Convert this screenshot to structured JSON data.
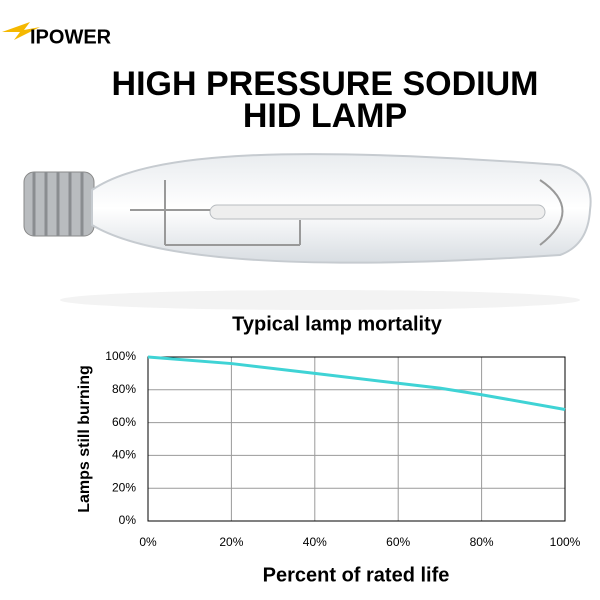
{
  "header": {
    "brand": "IPOWER",
    "title_lines": [
      "HIGH PRESSURE SODIUM",
      "HID LAMP"
    ]
  },
  "chart_data": {
    "type": "line",
    "title": "Typical lamp mortality",
    "x_label": "Percent of rated life",
    "y_label": "Lamps still burning",
    "x": [
      0,
      20,
      40,
      60,
      70,
      80,
      100
    ],
    "values": [
      100,
      96,
      90,
      84,
      81,
      77,
      68
    ],
    "color": "#3fd3d5",
    "xlim": [
      0,
      100
    ],
    "ylim": [
      0,
      100
    ],
    "xticks": [
      {
        "value": 0,
        "label": "0%"
      },
      {
        "value": 20,
        "label": "20%"
      },
      {
        "value": 40,
        "label": "40%"
      },
      {
        "value": 60,
        "label": "60%"
      },
      {
        "value": 80,
        "label": "80%"
      },
      {
        "value": 100,
        "label": "100%"
      }
    ],
    "yticks": [
      {
        "value": 0,
        "label": "0%"
      },
      {
        "value": 20,
        "label": "20%"
      },
      {
        "value": 40,
        "label": "40%"
      },
      {
        "value": 60,
        "label": "60%"
      },
      {
        "value": 80,
        "label": "80%"
      },
      {
        "value": 100,
        "label": "100%"
      }
    ],
    "grid": true
  }
}
